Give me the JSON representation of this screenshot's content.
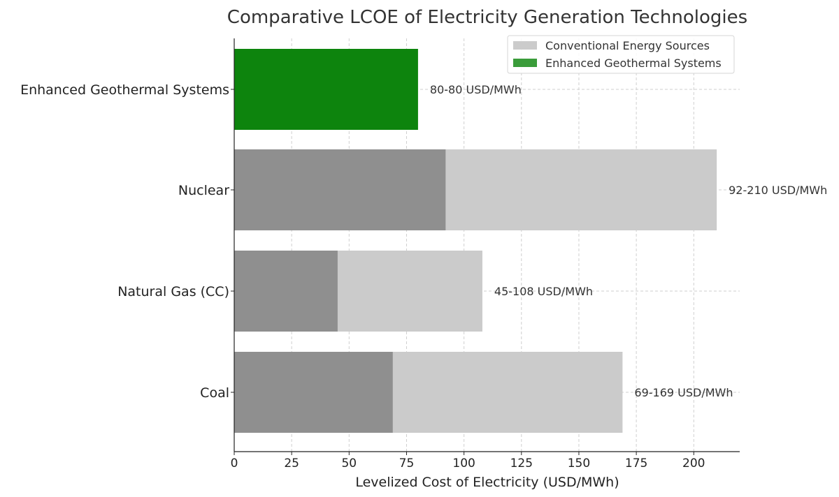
{
  "chart_data": {
    "type": "bar",
    "orientation": "horizontal",
    "title": "Comparative LCOE of Electricity Generation Technologies",
    "xlabel": "Levelized Cost of Electricity (USD/MWh)",
    "ylabel": "",
    "xlim": [
      0,
      220
    ],
    "xticks": [
      0,
      25,
      50,
      75,
      100,
      125,
      150,
      175,
      200
    ],
    "grid": true,
    "legend_position": "top-right",
    "categories": [
      "Coal",
      "Natural Gas (CC)",
      "Nuclear",
      "Enhanced Geothermal Systems"
    ],
    "ranges": [
      {
        "category": "Coal",
        "min": 69,
        "max": 169,
        "label": "69-169 USD/MWh",
        "group": "Conventional Energy Sources"
      },
      {
        "category": "Natural Gas (CC)",
        "min": 45,
        "max": 108,
        "label": "45-108 USD/MWh",
        "group": "Conventional Energy Sources"
      },
      {
        "category": "Nuclear",
        "min": 92,
        "max": 210,
        "label": "92-210 USD/MWh",
        "group": "Conventional Energy Sources"
      },
      {
        "category": "Enhanced Geothermal Systems",
        "min": 80,
        "max": 80,
        "label": "80-80 USD/MWh",
        "group": "Enhanced Geothermal Systems"
      }
    ],
    "legend": [
      {
        "name": "Conventional Energy Sources",
        "color": "#cbcbcb"
      },
      {
        "name": "Enhanced Geothermal Systems",
        "color": "#3a9c3a"
      }
    ],
    "colors": {
      "conventional_max": "#cbcbcb",
      "conventional_min": "#8f8f8f",
      "geothermal": "#0d840d",
      "geothermal_legend": "#3a9c3a"
    }
  }
}
